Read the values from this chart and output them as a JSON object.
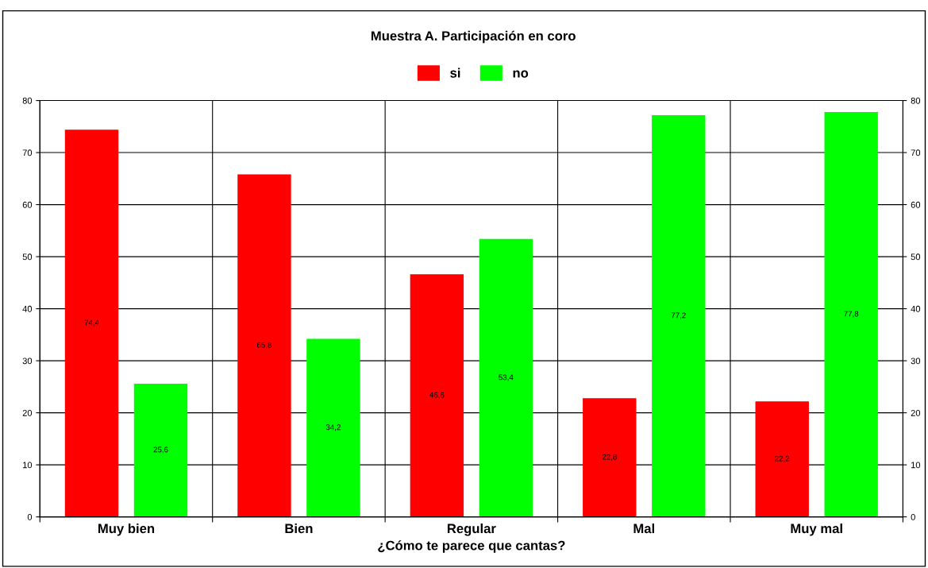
{
  "chart_data": {
    "type": "bar",
    "title": "Muestra A. Participación en coro",
    "xlabel": "¿Cómo te parece que cantas?",
    "categories": [
      "Muy bien",
      "Bien",
      "Regular",
      "Mal",
      "Muy mal"
    ],
    "series": [
      {
        "name": "si",
        "color": "#ff0000",
        "values": [
          74.4,
          65.8,
          46.6,
          22.8,
          22.2
        ],
        "value_labels": [
          "74,4",
          "65,8",
          "46,6",
          "22,8",
          "22,2"
        ]
      },
      {
        "name": "no",
        "color": "#00ff00",
        "values": [
          25.6,
          34.2,
          53.4,
          77.2,
          77.8
        ],
        "value_labels": [
          "25,6",
          "34,2",
          "53,4",
          "77,2",
          "77,8"
        ]
      }
    ],
    "ylim": [
      0,
      80
    ],
    "yticks": [
      0,
      10,
      20,
      30,
      40,
      50,
      60,
      70,
      80
    ],
    "y2lim": [
      0,
      80
    ],
    "y2ticks": [
      0,
      10,
      20,
      30,
      40,
      50,
      60,
      70,
      80
    ],
    "grid": true,
    "legend": "top"
  }
}
